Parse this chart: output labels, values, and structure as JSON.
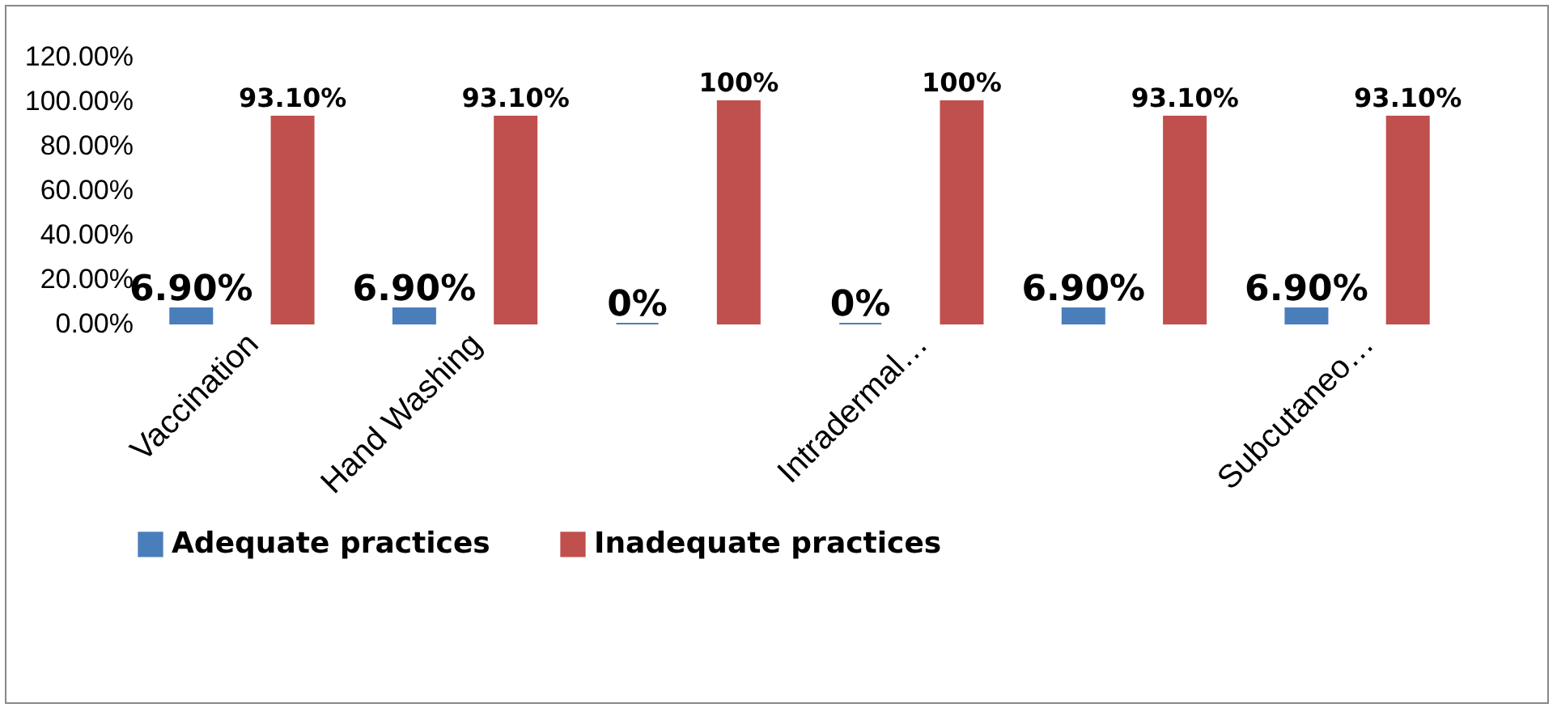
{
  "chart_data": {
    "type": "bar",
    "categories": [
      "Vaccination",
      "Hand Washing",
      null,
      "Intradermal…",
      null,
      "Subcutaneo…"
    ],
    "series": [
      {
        "name": "Adequate practices",
        "color": "#4a7ebb",
        "values": [
          6.9,
          6.9,
          0,
          0,
          6.9,
          6.9
        ],
        "value_labels": [
          "6.90%",
          "6.90%",
          "0%",
          "0%",
          "6.90%",
          "6.90%"
        ]
      },
      {
        "name": "Inadequate practices",
        "color": "#c0504d",
        "values": [
          93.1,
          93.1,
          100,
          100,
          93.1,
          93.1
        ],
        "value_labels": [
          "93.10%",
          "93.10%",
          "100%",
          "100%",
          "93.10%",
          "93.10%"
        ]
      }
    ],
    "ylim": [
      0,
      120
    ],
    "yticks": [
      {
        "value": 0,
        "label": "0.00%"
      },
      {
        "value": 20,
        "label": "20.00%"
      },
      {
        "value": 40,
        "label": "40.00%"
      },
      {
        "value": 60,
        "label": "60.00%"
      },
      {
        "value": 80,
        "label": "80.00%"
      },
      {
        "value": 100,
        "label": "100.00%"
      },
      {
        "value": 120,
        "label": "120.00%"
      }
    ],
    "grid": false,
    "legend": "bottom"
  }
}
